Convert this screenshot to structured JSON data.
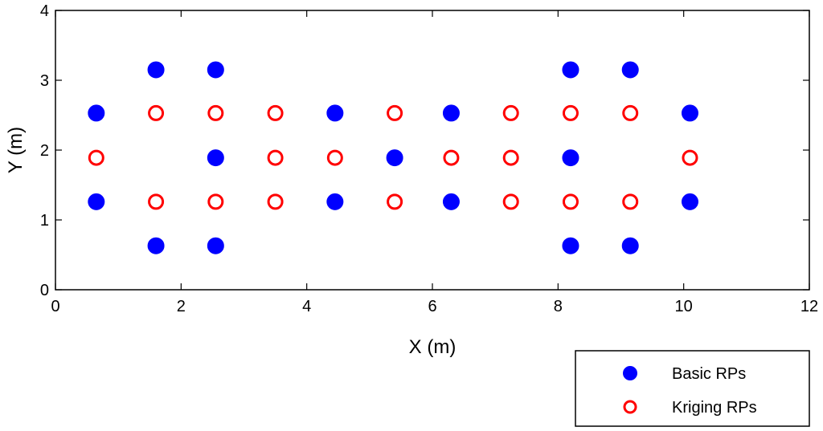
{
  "chart_data": {
    "type": "scatter",
    "title": "",
    "xlabel": "X (m)",
    "ylabel": "Y (m)",
    "xlim": [
      0,
      12
    ],
    "ylim": [
      0,
      4
    ],
    "xticks": [
      0,
      2,
      4,
      6,
      8,
      10,
      12
    ],
    "yticks": [
      0,
      1,
      2,
      3,
      4
    ],
    "grid": false,
    "legend_position": "below-right",
    "series": [
      {
        "name": "Basic RPs",
        "marker": "filled-circle",
        "color": "#0000ff",
        "points": [
          [
            0.65,
            2.53
          ],
          [
            0.65,
            1.26
          ],
          [
            1.6,
            3.15
          ],
          [
            1.6,
            0.63
          ],
          [
            2.55,
            3.15
          ],
          [
            2.55,
            1.89
          ],
          [
            2.55,
            0.63
          ],
          [
            4.45,
            2.53
          ],
          [
            4.45,
            1.26
          ],
          [
            5.4,
            1.89
          ],
          [
            6.3,
            2.53
          ],
          [
            6.3,
            1.26
          ],
          [
            8.2,
            3.15
          ],
          [
            8.2,
            1.89
          ],
          [
            8.2,
            0.63
          ],
          [
            9.15,
            3.15
          ],
          [
            9.15,
            0.63
          ],
          [
            10.1,
            2.53
          ],
          [
            10.1,
            1.26
          ]
        ]
      },
      {
        "name": "Kriging RPs",
        "marker": "open-circle",
        "color": "#ff0000",
        "points": [
          [
            0.65,
            1.89
          ],
          [
            1.6,
            2.53
          ],
          [
            1.6,
            1.26
          ],
          [
            2.55,
            2.53
          ],
          [
            2.55,
            1.26
          ],
          [
            3.5,
            2.53
          ],
          [
            3.5,
            1.89
          ],
          [
            3.5,
            1.26
          ],
          [
            4.45,
            1.89
          ],
          [
            5.4,
            2.53
          ],
          [
            5.4,
            1.26
          ],
          [
            6.3,
            1.89
          ],
          [
            7.25,
            2.53
          ],
          [
            7.25,
            1.89
          ],
          [
            7.25,
            1.26
          ],
          [
            8.2,
            2.53
          ],
          [
            8.2,
            1.26
          ],
          [
            9.15,
            2.53
          ],
          [
            9.15,
            1.26
          ],
          [
            10.1,
            1.89
          ]
        ]
      }
    ]
  }
}
